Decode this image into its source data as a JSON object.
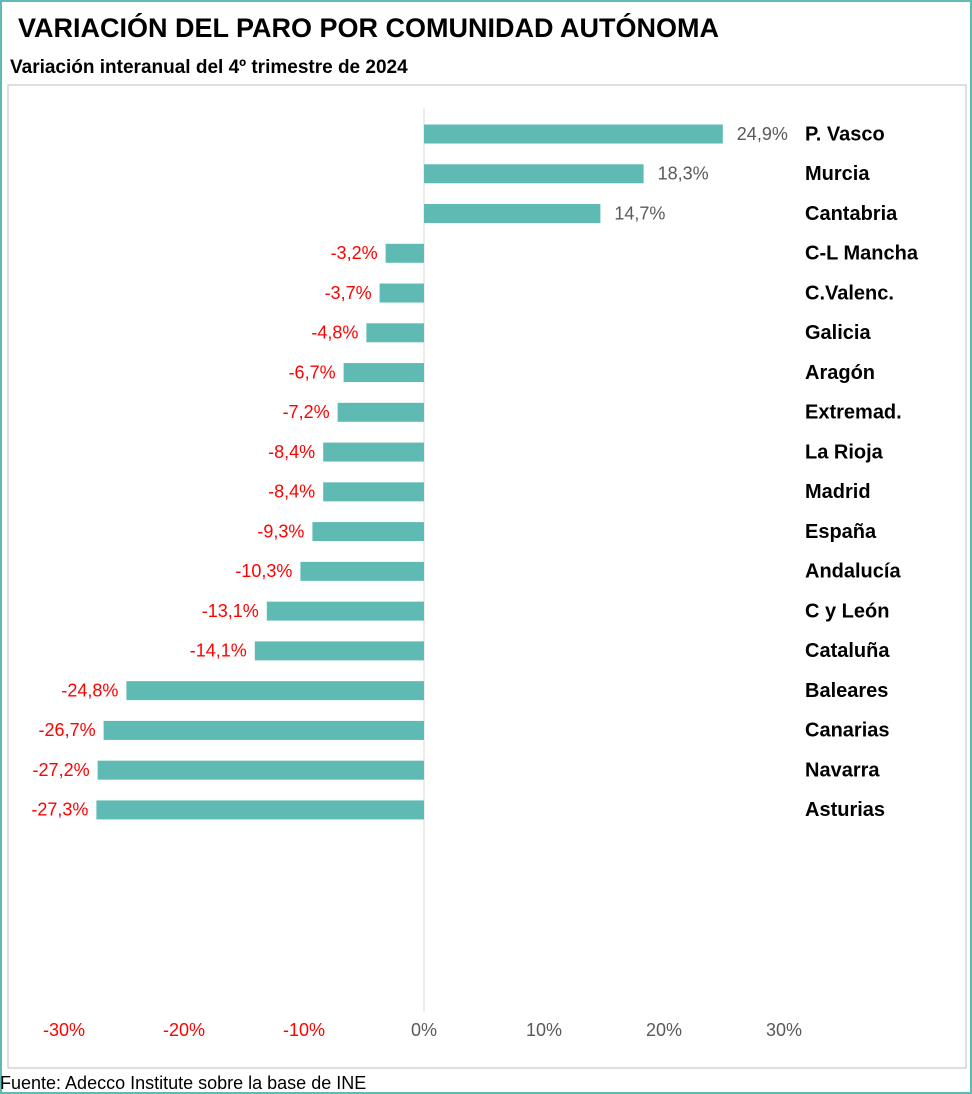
{
  "chart_data": {
    "type": "barh",
    "title": "VARIACIÓN DEL PARO POR COMUNIDAD AUTÓNOMA",
    "subtitle": "Variación interanual del 4º trimestre de 2024",
    "source": "Fuente: Adecco Institute sobre la base de INE",
    "categories": [
      "P. Vasco",
      "Murcia",
      "Cantabria",
      "C-L Mancha",
      "C.Valenc.",
      "Galicia",
      "Aragón",
      "Extremad.",
      "La Rioja",
      "Madrid",
      "España",
      "Andalucía",
      "C y León",
      "Cataluña",
      "Baleares",
      "Canarias",
      "Navarra",
      "Asturias"
    ],
    "values": [
      24.9,
      18.3,
      14.7,
      -3.2,
      -3.7,
      -4.8,
      -6.7,
      -7.2,
      -8.4,
      -8.4,
      -9.3,
      -10.3,
      -13.1,
      -14.1,
      -24.8,
      -26.7,
      -27.2,
      -27.3
    ],
    "value_labels": [
      "24,9%",
      "18,3%",
      "14,7%",
      "-3,2%",
      "-3,7%",
      "-4,8%",
      "-6,7%",
      "-7,2%",
      "-8,4%",
      "-8,4%",
      "-9,3%",
      "-10,3%",
      "-13,1%",
      "-14,1%",
      "-24,8%",
      "-26,7%",
      "-27,2%",
      "-27,3%"
    ],
    "color": "#5fbab4",
    "label_colors": {
      "positive": "#595959",
      "negative": "#ff0000"
    },
    "xlim": [
      -30,
      30
    ],
    "xticks": [
      {
        "value": -30,
        "label": "-30%"
      },
      {
        "value": -20,
        "label": "-20%"
      },
      {
        "value": -10,
        "label": "-10%"
      },
      {
        "value": 0,
        "label": "0%"
      },
      {
        "value": 10,
        "label": "10%"
      },
      {
        "value": 20,
        "label": "20%"
      },
      {
        "value": 30,
        "label": "30%"
      }
    ],
    "grid": false
  }
}
